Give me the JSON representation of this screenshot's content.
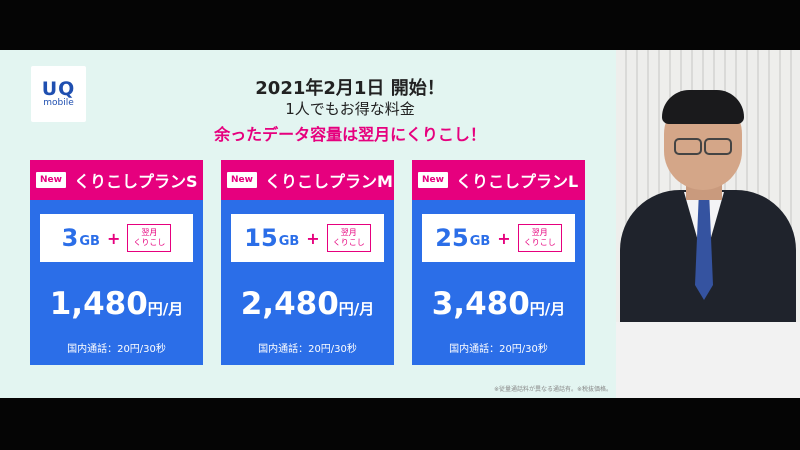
{
  "logo": {
    "mark": "UQ",
    "sub": "mobile"
  },
  "headline": {
    "line1": "2021年2月1日 開始！",
    "line2": "1人でもお得な料金",
    "line3": "余ったデータ容量は翌月にくりこし！"
  },
  "badge_new": "New",
  "carryover_line1": "翌月",
  "carryover_line2": "くりこし",
  "plus": "+",
  "price_unit": "円/月",
  "gb_unit": "GB",
  "plans": [
    {
      "name": "くりこしプランS",
      "data": "3",
      "price": "1,480",
      "call": "国内通話：20円/30秒"
    },
    {
      "name": "くりこしプランM",
      "data": "15",
      "price": "2,480",
      "call": "国内通話：20円/30秒"
    },
    {
      "name": "くりこしプランL",
      "data": "25",
      "price": "3,480",
      "call": "国内通話：20円/30秒"
    }
  ],
  "footnote": "※従量通話料が異なる通話有。※税抜価格。",
  "colors": {
    "accent_pink": "#e6007e",
    "plan_blue": "#2b6ee8",
    "slide_bg": "#e3f5f1"
  }
}
